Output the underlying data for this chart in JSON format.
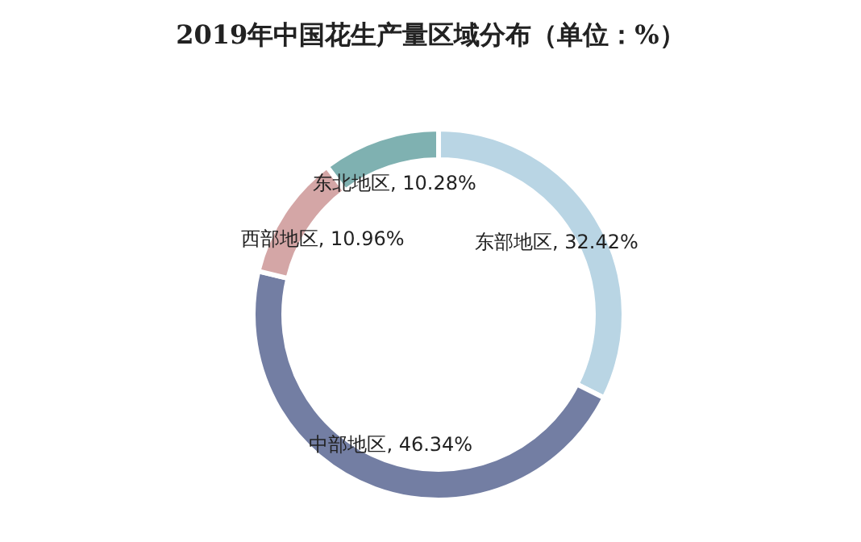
{
  "chart_data": {
    "type": "donut",
    "title": "2019年中国花生产量区域分布（单位：%）",
    "categories": [
      "东部地区",
      "中部地区",
      "西部地区",
      "东北地区"
    ],
    "values": [
      32.42,
      46.34,
      10.96,
      10.28
    ],
    "colors": [
      "#b9d5e4",
      "#737ea3",
      "#d4a6a6",
      "#7fb1b1"
    ],
    "value_labels": [
      ", 32.42%",
      ", 46.34%",
      ", 10.96%",
      ", 10.28%"
    ]
  }
}
